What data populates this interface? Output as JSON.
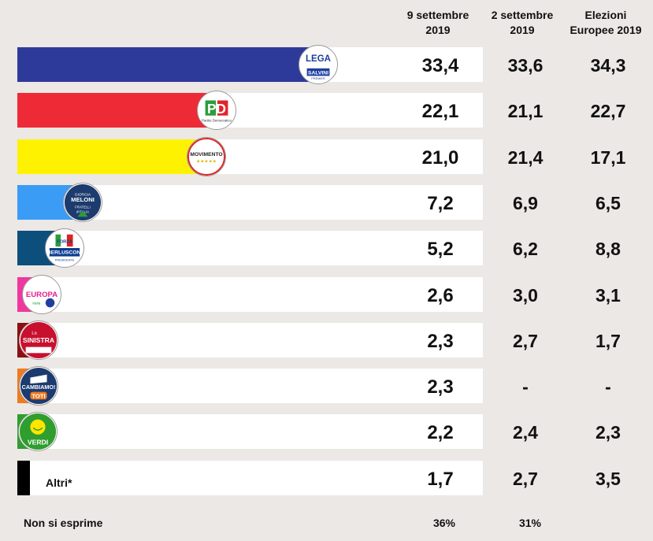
{
  "chart_data": {
    "type": "bar",
    "headers": [
      "9 settembre 2019",
      "2 settembre 2019",
      "Elezioni Europee 2019"
    ],
    "categories": [
      "Lega",
      "PD",
      "Movimento 5 Stelle",
      "Fratelli d'Italia",
      "Forza Italia",
      "+Europa",
      "La Sinistra",
      "Cambiamo!",
      "Verdi",
      "Altri*"
    ],
    "series": [
      {
        "name": "9 settembre 2019",
        "values": [
          "33,4",
          "22,1",
          "21,0",
          "7,2",
          "5,2",
          "2,6",
          "2,3",
          "2,3",
          "2,2",
          "1,7"
        ]
      },
      {
        "name": "2 settembre 2019",
        "values": [
          "33,6",
          "21,1",
          "21,4",
          "6,9",
          "6,2",
          "3,0",
          "2,7",
          "-",
          "2,4",
          "2,7"
        ]
      },
      {
        "name": "Elezioni Europee 2019",
        "values": [
          "34,3",
          "22,7",
          "17,1",
          "6,5",
          "8,8",
          "3,1",
          "1,7",
          "-",
          "2,3",
          "3,5"
        ]
      }
    ],
    "bar_values": [
      33.4,
      22.1,
      21.0,
      7.2,
      5.2,
      2.6,
      2.3,
      2.3,
      2.2,
      1.7
    ],
    "colors": [
      "#2e3a9a",
      "#ee2a36",
      "#fff200",
      "#3b9cf5",
      "#0d4f7c",
      "#f0379e",
      "#8b1010",
      "#f07a22",
      "#2f9e2f",
      "#000000"
    ],
    "xlim": [
      0,
      50
    ],
    "other_label": "Altri*",
    "footer": {
      "label": "Non si esprime",
      "values": [
        "36%",
        "31%",
        ""
      ]
    },
    "logos": [
      {
        "icon": "lega-logo-icon",
        "text": "LEGA",
        "sub": "SALVINI",
        "sub2": "PREMIER"
      },
      {
        "icon": "pd-logo-icon",
        "text": "PD",
        "sub": "Partito Democratico"
      },
      {
        "icon": "m5s-logo-icon",
        "text": "MOVIMENTO",
        "sub": "★★★★★"
      },
      {
        "icon": "fdi-logo-icon",
        "text": "GIORGIA MELONI",
        "sub": "FRATELLI D'ITALIA"
      },
      {
        "icon": "fi-logo-icon",
        "text": "FORZA ITALIA",
        "sub": "BERLUSCONI",
        "sub2": "PRESIDENTE"
      },
      {
        "icon": "europa-logo-icon",
        "text": "+EUROPA",
        "sub": "Italia"
      },
      {
        "icon": "sinistra-logo-icon",
        "text": "SINISTRA",
        "sub": "La"
      },
      {
        "icon": "cambiamo-logo-icon",
        "text": "CAMBIAMO!",
        "sub": "TOTI"
      },
      {
        "icon": "verdi-logo-icon",
        "text": "VERDI",
        "sub": ""
      }
    ]
  }
}
